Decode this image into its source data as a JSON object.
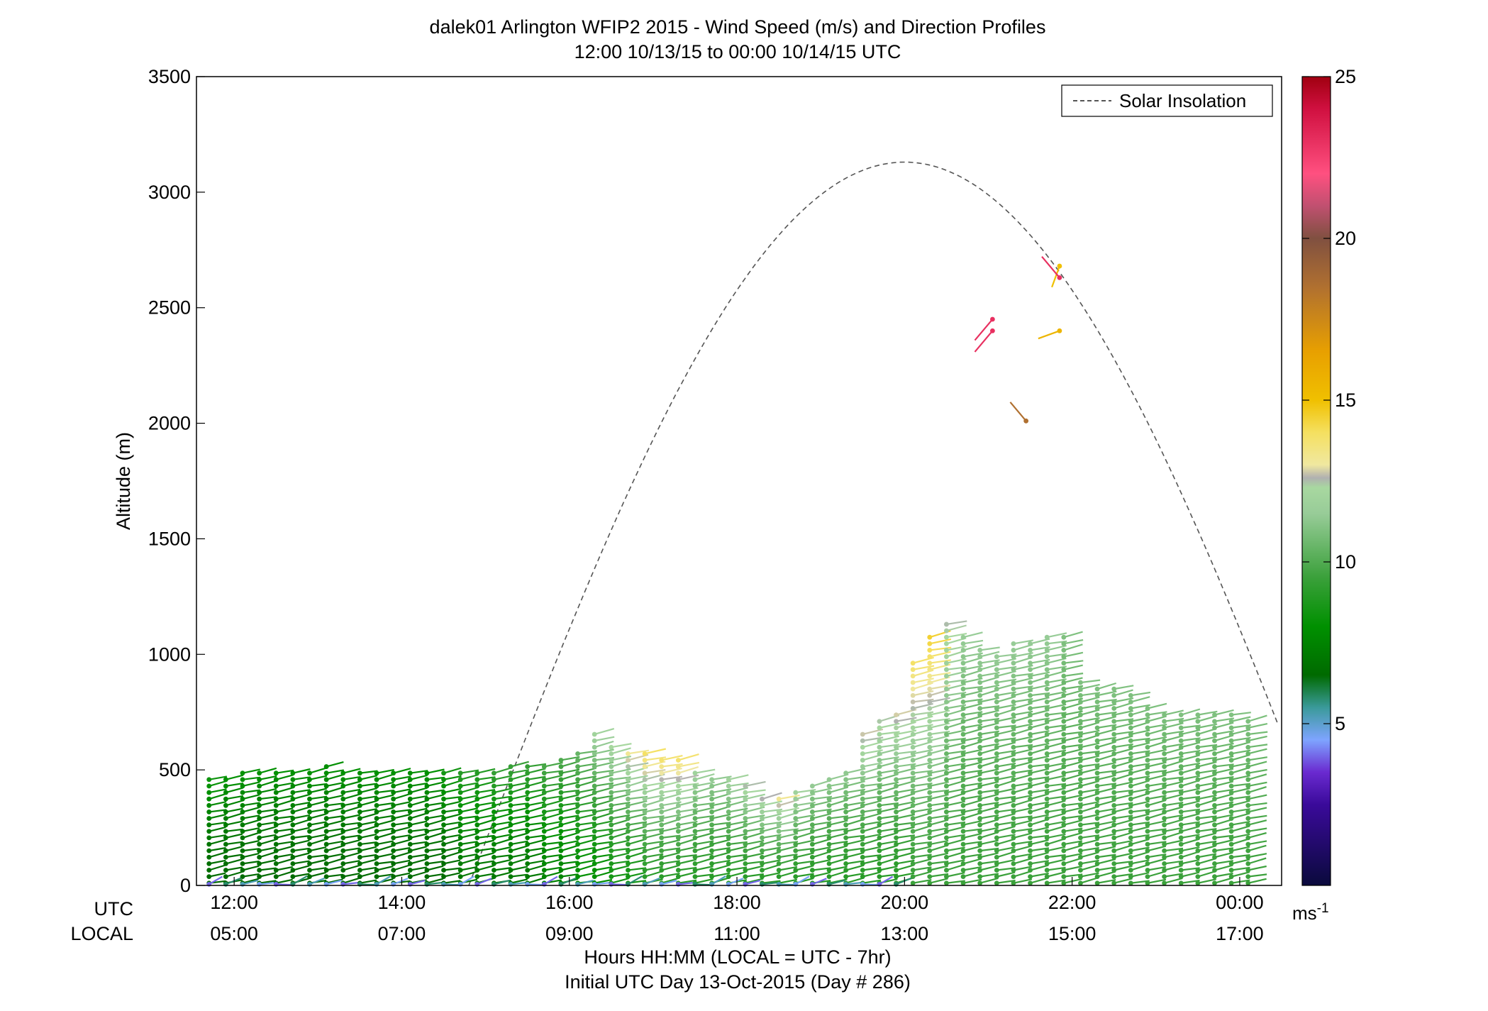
{
  "chart_data": {
    "type": "wind-barb-profile",
    "title": "dalek01 Arlington WFIP2 2015 - Wind Speed (m/s) and Direction Profiles",
    "subtitle": "12:00 10/13/15 to 00:00 10/14/15  UTC",
    "ylabel": "Altitude (m)",
    "xlabel": "Hours HH:MM  (LOCAL = UTC - 7hr)",
    "xlabel2": "Initial UTC Day 13-Oct-2015 (Day # 286)",
    "utc_label": "UTC",
    "local_label": "LOCAL",
    "x_tick_labels_utc": [
      "12:00",
      "14:00",
      "16:00",
      "18:00",
      "20:00",
      "22:00",
      "00:00"
    ],
    "x_tick_labels_local": [
      "05:00",
      "07:00",
      "09:00",
      "11:00",
      "13:00",
      "15:00",
      "17:00"
    ],
    "x_ticks_hours": [
      12,
      14,
      16,
      18,
      20,
      22,
      24
    ],
    "xlim": [
      11.55,
      24.5
    ],
    "ylim": [
      0,
      3500
    ],
    "y_ticks": [
      0,
      500,
      1000,
      1500,
      2000,
      2500,
      3000,
      3500
    ],
    "legend": {
      "position": "top-right",
      "entries": [
        "Solar Insolation"
      ]
    },
    "colorbar": {
      "range": [
        0,
        25
      ],
      "ticks": [
        5,
        10,
        15,
        20,
        25
      ],
      "unit_label": "ms",
      "unit_exp": "-1",
      "stops": [
        [
          0.0,
          "#0a0a3c"
        ],
        [
          2.5,
          "#3a0a9a"
        ],
        [
          3.5,
          "#6a2ad0"
        ],
        [
          4.5,
          "#7ea4ff"
        ],
        [
          5.5,
          "#3a9a9a"
        ],
        [
          6.5,
          "#006a00"
        ],
        [
          8.0,
          "#009000"
        ],
        [
          9.5,
          "#3aa03a"
        ],
        [
          11.5,
          "#98cc98"
        ],
        [
          12.3,
          "#a8d8a0"
        ],
        [
          12.6,
          "#b0b0b0"
        ],
        [
          13.0,
          "#f0e8a0"
        ],
        [
          14.0,
          "#f5e060"
        ],
        [
          15.0,
          "#f0c000"
        ],
        [
          16.5,
          "#e8a000"
        ],
        [
          18.5,
          "#b07030"
        ],
        [
          20.0,
          "#805040"
        ],
        [
          21.0,
          "#c05070"
        ],
        [
          22.0,
          "#ff5080"
        ],
        [
          24.0,
          "#d01040"
        ],
        [
          25.0,
          "#a00010"
        ]
      ]
    },
    "solar_insolation": {
      "peak_hour": 20.0,
      "peak_altitude": 3130,
      "half_width_hours": 5.2,
      "style": "dashed",
      "color": "#555555"
    },
    "profiles": [
      {
        "t": 11.7,
        "top": 480,
        "spd_low": 6.5,
        "spd_high": 8.5
      },
      {
        "t": 11.9,
        "top": 485,
        "spd_low": 6.5,
        "spd_high": 8.2
      },
      {
        "t": 12.1,
        "top": 490,
        "spd_low": 6.5,
        "spd_high": 8.2
      },
      {
        "t": 12.3,
        "top": 490,
        "spd_low": 6.5,
        "spd_high": 8.0
      },
      {
        "t": 12.5,
        "top": 490,
        "spd_low": 6.5,
        "spd_high": 8.0
      },
      {
        "t": 12.7,
        "top": 490,
        "spd_low": 6.5,
        "spd_high": 8.0
      },
      {
        "t": 12.9,
        "top": 490,
        "spd_low": 6.5,
        "spd_high": 8.0
      },
      {
        "t": 13.1,
        "top": 520,
        "spd_low": 6.5,
        "spd_high": 8.0
      },
      {
        "t": 13.3,
        "top": 490,
        "spd_low": 6.5,
        "spd_high": 8.0
      },
      {
        "t": 13.5,
        "top": 490,
        "spd_low": 6.5,
        "spd_high": 8.0
      },
      {
        "t": 13.7,
        "top": 490,
        "spd_low": 6.5,
        "spd_high": 8.0
      },
      {
        "t": 13.9,
        "top": 490,
        "spd_low": 6.5,
        "spd_high": 8.0
      },
      {
        "t": 14.1,
        "top": 490,
        "spd_low": 6.5,
        "spd_high": 8.0
      },
      {
        "t": 14.3,
        "top": 490,
        "spd_low": 6.5,
        "spd_high": 8.0
      },
      {
        "t": 14.5,
        "top": 490,
        "spd_low": 6.5,
        "spd_high": 8.5
      },
      {
        "t": 14.7,
        "top": 490,
        "spd_low": 7.0,
        "spd_high": 9.0
      },
      {
        "t": 14.9,
        "top": 500,
        "spd_low": 7.0,
        "spd_high": 9.0
      },
      {
        "t": 15.1,
        "top": 510,
        "spd_low": 7.0,
        "spd_high": 9.5
      },
      {
        "t": 15.3,
        "top": 520,
        "spd_low": 7.0,
        "spd_high": 9.5
      },
      {
        "t": 15.5,
        "top": 530,
        "spd_low": 7.0,
        "spd_high": 9.5
      },
      {
        "t": 15.7,
        "top": 540,
        "spd_low": 7.5,
        "spd_high": 10.0
      },
      {
        "t": 15.9,
        "top": 555,
        "spd_low": 7.5,
        "spd_high": 10.0
      },
      {
        "t": 16.1,
        "top": 575,
        "spd_low": 8.0,
        "spd_high": 10.5
      },
      {
        "t": 16.3,
        "top": 660,
        "spd_low": 8.0,
        "spd_high": 12.0
      },
      {
        "t": 16.5,
        "top": 625,
        "spd_low": 8.5,
        "spd_high": 12.5
      },
      {
        "t": 16.7,
        "top": 595,
        "spd_low": 8.5,
        "spd_high": 13.5
      },
      {
        "t": 16.9,
        "top": 575,
        "spd_low": 9.0,
        "spd_high": 14.0
      },
      {
        "t": 17.1,
        "top": 560,
        "spd_low": 9.0,
        "spd_high": 14.0
      },
      {
        "t": 17.3,
        "top": 560,
        "spd_low": 9.0,
        "spd_high": 14.0
      },
      {
        "t": 17.5,
        "top": 500,
        "spd_low": 9.0,
        "spd_high": 12.0
      },
      {
        "t": 17.7,
        "top": 470,
        "spd_low": 9.0,
        "spd_high": 11.5
      },
      {
        "t": 17.9,
        "top": 460,
        "spd_low": 9.0,
        "spd_high": 12.0
      },
      {
        "t": 18.1,
        "top": 430,
        "spd_low": 9.0,
        "spd_high": 12.5
      },
      {
        "t": 18.3,
        "top": 400,
        "spd_low": 9.0,
        "spd_high": 13.0
      },
      {
        "t": 18.5,
        "top": 390,
        "spd_low": 9.0,
        "spd_high": 13.5
      },
      {
        "t": 18.7,
        "top": 410,
        "spd_low": 9.0,
        "spd_high": 12.0
      },
      {
        "t": 18.9,
        "top": 440,
        "spd_low": 9.0,
        "spd_high": 11.5
      },
      {
        "t": 19.1,
        "top": 470,
        "spd_low": 9.0,
        "spd_high": 11.5
      },
      {
        "t": 19.3,
        "top": 510,
        "spd_low": 9.0,
        "spd_high": 11.5
      },
      {
        "t": 19.5,
        "top": 680,
        "spd_low": 9.0,
        "spd_high": 13.0
      },
      {
        "t": 19.7,
        "top": 720,
        "spd_low": 9.0,
        "spd_high": 12.5
      },
      {
        "t": 19.9,
        "top": 760,
        "spd_low": 9.0,
        "spd_high": 13.0
      },
      {
        "t": 20.1,
        "top": 980,
        "spd_low": 9.5,
        "spd_high": 14.0
      },
      {
        "t": 20.3,
        "top": 1080,
        "spd_low": 9.5,
        "spd_high": 14.5
      },
      {
        "t": 20.5,
        "top": 1130,
        "spd_low": 9.5,
        "spd_high": 12.5
      },
      {
        "t": 20.7,
        "top": 1080,
        "spd_low": 9.5,
        "spd_high": 11.5
      },
      {
        "t": 20.9,
        "top": 1030,
        "spd_low": 9.5,
        "spd_high": 11.5
      },
      {
        "t": 21.1,
        "top": 1000,
        "spd_low": 9.5,
        "spd_high": 11.5
      },
      {
        "t": 21.3,
        "top": 1050,
        "spd_low": 9.5,
        "spd_high": 11.5
      },
      {
        "t": 21.5,
        "top": 1070,
        "spd_low": 9.5,
        "spd_high": 11.5
      },
      {
        "t": 21.7,
        "top": 1080,
        "spd_low": 9.5,
        "spd_high": 11.5
      },
      {
        "t": 21.9,
        "top": 1080,
        "spd_low": 9.5,
        "spd_high": 11.0
      },
      {
        "t": 22.1,
        "top": 880,
        "spd_low": 9.5,
        "spd_high": 11.0
      },
      {
        "t": 22.3,
        "top": 860,
        "spd_low": 9.5,
        "spd_high": 11.0
      },
      {
        "t": 22.5,
        "top": 850,
        "spd_low": 9.5,
        "spd_high": 11.0
      },
      {
        "t": 22.7,
        "top": 830,
        "spd_low": 9.5,
        "spd_high": 11.0
      },
      {
        "t": 22.9,
        "top": 780,
        "spd_low": 9.5,
        "spd_high": 11.0
      },
      {
        "t": 23.1,
        "top": 760,
        "spd_low": 9.5,
        "spd_high": 11.0
      },
      {
        "t": 23.3,
        "top": 750,
        "spd_low": 9.5,
        "spd_high": 11.0
      },
      {
        "t": 23.5,
        "top": 750,
        "spd_low": 9.5,
        "spd_high": 11.0
      },
      {
        "t": 23.7,
        "top": 750,
        "spd_low": 9.5,
        "spd_high": 11.0
      },
      {
        "t": 23.9,
        "top": 740,
        "spd_low": 9.5,
        "spd_high": 11.0
      },
      {
        "t": 24.1,
        "top": 730,
        "spd_low": 9.5,
        "spd_high": 11.0
      }
    ],
    "upper_obs": [
      {
        "t": 21.85,
        "alt": 2680,
        "spd": 15.0,
        "dir": 200
      },
      {
        "t": 21.85,
        "alt": 2630,
        "spd": 23.0,
        "dir": 320
      },
      {
        "t": 21.05,
        "alt": 2450,
        "spd": 23.0,
        "dir": 220
      },
      {
        "t": 21.05,
        "alt": 2400,
        "spd": 23.0,
        "dir": 220
      },
      {
        "t": 21.85,
        "alt": 2400,
        "spd": 15.5,
        "dir": 250
      },
      {
        "t": 21.45,
        "alt": 2010,
        "spd": 18.5,
        "dir": 320
      }
    ]
  }
}
